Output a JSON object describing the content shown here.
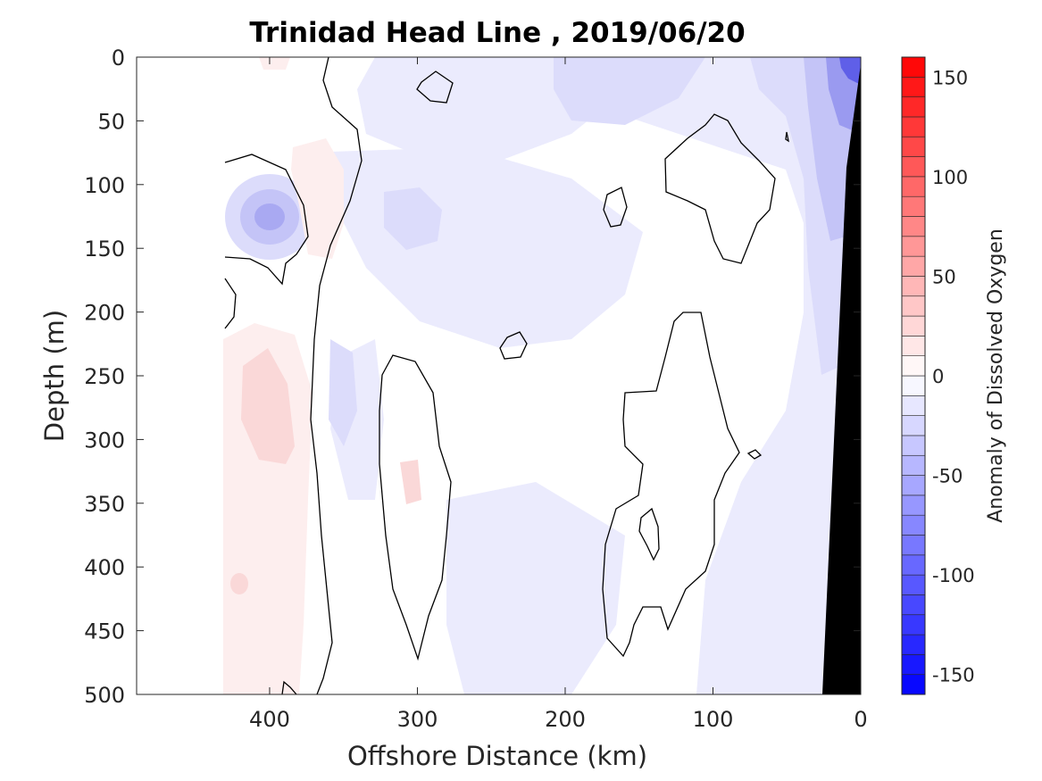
{
  "chart_data": {
    "type": "heatmap",
    "subtype": "filled contour section",
    "title": "Trinidad Head Line , 2019/06/20",
    "xlabel": "Offshore Distance (km)",
    "ylabel": "Depth (m)",
    "x_reversed": true,
    "y_reversed": true,
    "xlim": [
      0,
      490
    ],
    "ylim": [
      0,
      500
    ],
    "x_ticks": [
      400,
      300,
      200,
      100,
      0
    ],
    "y_ticks": [
      0,
      50,
      100,
      150,
      200,
      250,
      300,
      350,
      400,
      450,
      500
    ],
    "colorbar": {
      "label": "Anomaly of Dissolved Oxygen",
      "range": [
        -160,
        160
      ],
      "step": 10,
      "ticks": [
        150,
        100,
        50,
        0,
        -50,
        -100,
        -150
      ],
      "colormap": "blue-white-red",
      "low_color": "#0000ff",
      "high_color": "#ff0000",
      "mid_color": "#ffffff"
    },
    "zero_contour_lines": true,
    "bottom_mask_color": "#000000",
    "features": [
      {
        "kind": "negative anomaly",
        "x": 400,
        "depth": 125,
        "value": -40
      },
      {
        "kind": "positive anomaly",
        "x": 415,
        "depth": 290,
        "value": 15
      },
      {
        "kind": "positive anomaly",
        "x": 380,
        "depth": 100,
        "value": 10
      },
      {
        "kind": "negative anomaly",
        "x": 3,
        "depth": 5,
        "value": -130
      },
      {
        "kind": "negative anomaly",
        "x": 20,
        "depth": 150,
        "value": -25
      },
      {
        "kind": "negative anomaly",
        "x": 350,
        "depth": 260,
        "value": -20
      }
    ]
  }
}
